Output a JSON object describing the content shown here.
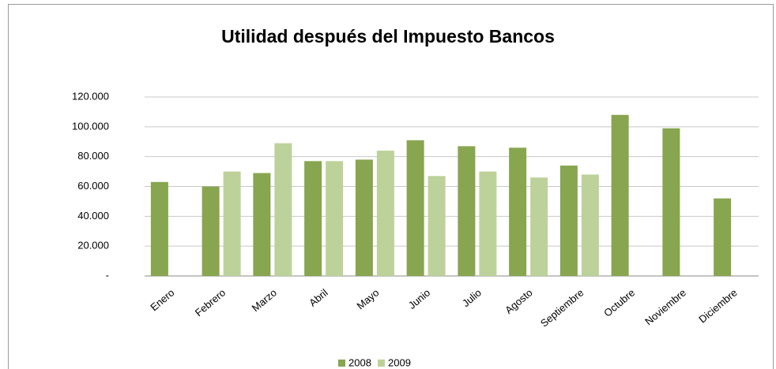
{
  "chart_data": {
    "type": "bar",
    "title": "Utilidad después del Impuesto  Bancos",
    "categories": [
      "Enero",
      "Febrero",
      "Marzo",
      "Abril",
      "Mayo",
      "Junio",
      "Julio",
      "Agosto",
      "Septiembre",
      "Octubre",
      "Noviembre",
      "Diciembre"
    ],
    "series": [
      {
        "name": "2008",
        "color": "#88a550",
        "values": [
          63000,
          60000,
          69000,
          77000,
          78000,
          91000,
          87000,
          86000,
          74000,
          108000,
          99000,
          52000
        ]
      },
      {
        "name": "2009",
        "color": "#bcd29a",
        "values": [
          null,
          70000,
          89000,
          77000,
          84000,
          67000,
          70000,
          66000,
          68000,
          null,
          null,
          null
        ]
      }
    ],
    "ylim": [
      0,
      120000
    ],
    "yticks": [
      {
        "value": 0,
        "label": "-"
      },
      {
        "value": 20000,
        "label": "20.000"
      },
      {
        "value": 40000,
        "label": "40.000"
      },
      {
        "value": 60000,
        "label": "60.000"
      },
      {
        "value": 80000,
        "label": "80.000"
      },
      {
        "value": 100000,
        "label": "100.000"
      },
      {
        "value": 120000,
        "label": "120.000"
      }
    ],
    "grid": true,
    "legend": "bottom"
  }
}
